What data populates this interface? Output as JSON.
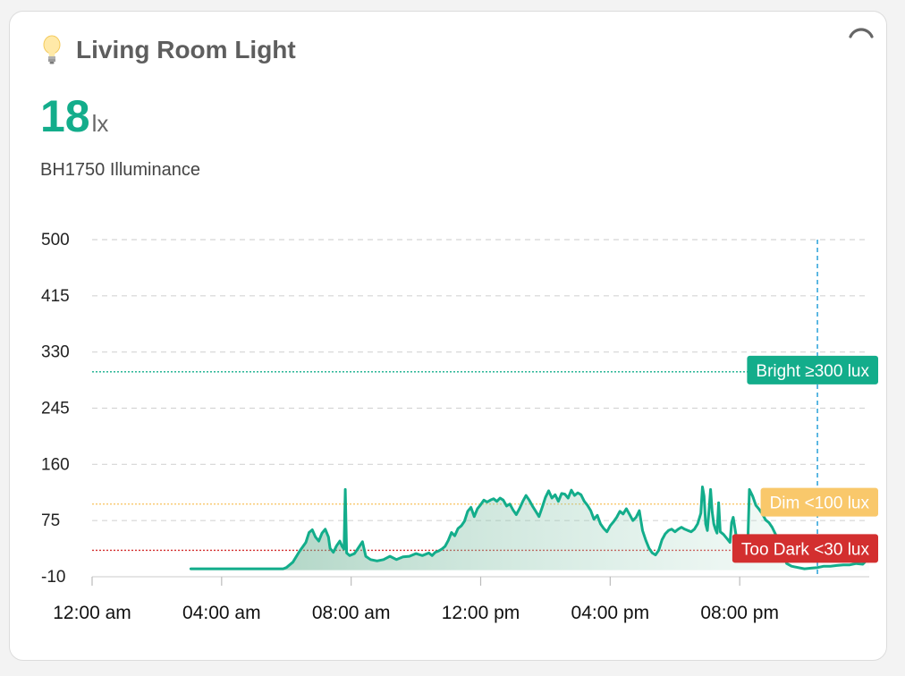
{
  "card": {
    "title": "Living Room Light",
    "icon": "lightbulb-icon",
    "value": "18",
    "unit": "lx",
    "subtitle": "BH1750 Illuminance",
    "accent_color": "#13ad8b"
  },
  "chart_data": {
    "type": "area",
    "title": "",
    "xlabel": "",
    "ylabel": "",
    "x_unit": "hour",
    "xlim": [
      0,
      24
    ],
    "ylim": [
      -10,
      500
    ],
    "y_ticks": [
      -10,
      75,
      160,
      245,
      330,
      415,
      500
    ],
    "x_ticks": [
      {
        "value": 0,
        "label": "12:00 am"
      },
      {
        "value": 4,
        "label": "04:00 am"
      },
      {
        "value": 8,
        "label": "08:00 am"
      },
      {
        "value": 12,
        "label": "12:00 pm"
      },
      {
        "value": 16,
        "label": "04:00 pm"
      },
      {
        "value": 20,
        "label": "08:00 pm"
      }
    ],
    "grid": true,
    "cursor_x": 22.4,
    "thresholds": [
      {
        "value": 300,
        "label": "Bright ≥300 lux",
        "color": "#13ad8b",
        "text_color": "#ffffff"
      },
      {
        "value": 100,
        "label": "Dim <100 lux",
        "color": "#f9c86b",
        "text_color": "#ffffff"
      },
      {
        "value": 30,
        "label": "Too Dark <30 lux",
        "color": "#d32f2f",
        "text_color": "#ffffff"
      }
    ],
    "series": [
      {
        "color": "#13ad8b",
        "points": [
          [
            3.05,
            2
          ],
          [
            5.9,
            2
          ],
          [
            6.0,
            4
          ],
          [
            6.2,
            12
          ],
          [
            6.4,
            28
          ],
          [
            6.6,
            42
          ],
          [
            6.7,
            57
          ],
          [
            6.8,
            61
          ],
          [
            6.9,
            50
          ],
          [
            7.0,
            44
          ],
          [
            7.1,
            56
          ],
          [
            7.2,
            62
          ],
          [
            7.3,
            50
          ],
          [
            7.35,
            33
          ],
          [
            7.45,
            27
          ],
          [
            7.55,
            37
          ],
          [
            7.65,
            44
          ],
          [
            7.72,
            36
          ],
          [
            7.78,
            32
          ],
          [
            7.82,
            122
          ],
          [
            7.86,
            26
          ],
          [
            7.95,
            22
          ],
          [
            8.1,
            25
          ],
          [
            8.2,
            32
          ],
          [
            8.35,
            43
          ],
          [
            8.45,
            21
          ],
          [
            8.6,
            16
          ],
          [
            8.8,
            14
          ],
          [
            9.0,
            16
          ],
          [
            9.2,
            21
          ],
          [
            9.4,
            16
          ],
          [
            9.6,
            20
          ],
          [
            9.8,
            21
          ],
          [
            10.0,
            25
          ],
          [
            10.2,
            22
          ],
          [
            10.4,
            26
          ],
          [
            10.5,
            22
          ],
          [
            10.6,
            27
          ],
          [
            10.7,
            29
          ],
          [
            10.8,
            32
          ],
          [
            10.9,
            36
          ],
          [
            11.0,
            45
          ],
          [
            11.1,
            57
          ],
          [
            11.2,
            52
          ],
          [
            11.3,
            63
          ],
          [
            11.4,
            67
          ],
          [
            11.5,
            74
          ],
          [
            11.6,
            89
          ],
          [
            11.7,
            95
          ],
          [
            11.8,
            81
          ],
          [
            11.9,
            93
          ],
          [
            12.0,
            99
          ],
          [
            12.1,
            106
          ],
          [
            12.2,
            103
          ],
          [
            12.3,
            106
          ],
          [
            12.4,
            108
          ],
          [
            12.5,
            104
          ],
          [
            12.6,
            109
          ],
          [
            12.7,
            106
          ],
          [
            12.8,
            97
          ],
          [
            12.9,
            100
          ],
          [
            13.0,
            91
          ],
          [
            13.1,
            84
          ],
          [
            13.2,
            93
          ],
          [
            13.3,
            104
          ],
          [
            13.4,
            113
          ],
          [
            13.5,
            106
          ],
          [
            13.6,
            97
          ],
          [
            13.7,
            89
          ],
          [
            13.8,
            81
          ],
          [
            13.9,
            95
          ],
          [
            14.0,
            110
          ],
          [
            14.1,
            120
          ],
          [
            14.2,
            109
          ],
          [
            14.3,
            114
          ],
          [
            14.4,
            104
          ],
          [
            14.5,
            116
          ],
          [
            14.6,
            115
          ],
          [
            14.7,
            109
          ],
          [
            14.8,
            121
          ],
          [
            14.9,
            113
          ],
          [
            15.0,
            117
          ],
          [
            15.1,
            114
          ],
          [
            15.2,
            104
          ],
          [
            15.3,
            98
          ],
          [
            15.4,
            90
          ],
          [
            15.5,
            77
          ],
          [
            15.6,
            83
          ],
          [
            15.7,
            70
          ],
          [
            15.8,
            63
          ],
          [
            15.9,
            58
          ],
          [
            16.0,
            67
          ],
          [
            16.1,
            73
          ],
          [
            16.2,
            80
          ],
          [
            16.3,
            89
          ],
          [
            16.4,
            85
          ],
          [
            16.5,
            93
          ],
          [
            16.6,
            84
          ],
          [
            16.7,
            75
          ],
          [
            16.8,
            80
          ],
          [
            16.9,
            90
          ],
          [
            17.0,
            60
          ],
          [
            17.1,
            45
          ],
          [
            17.2,
            33
          ],
          [
            17.3,
            26
          ],
          [
            17.4,
            23
          ],
          [
            17.5,
            30
          ],
          [
            17.6,
            46
          ],
          [
            17.7,
            55
          ],
          [
            17.8,
            60
          ],
          [
            17.9,
            62
          ],
          [
            18.0,
            58
          ],
          [
            18.1,
            62
          ],
          [
            18.2,
            65
          ],
          [
            18.3,
            62
          ],
          [
            18.4,
            60
          ],
          [
            18.5,
            58
          ],
          [
            18.6,
            62
          ],
          [
            18.7,
            70
          ],
          [
            18.8,
            86
          ],
          [
            18.85,
            126
          ],
          [
            18.9,
            112
          ],
          [
            18.95,
            70
          ],
          [
            19.0,
            60
          ],
          [
            19.05,
            90
          ],
          [
            19.1,
            122
          ],
          [
            19.15,
            88
          ],
          [
            19.2,
            70
          ],
          [
            19.25,
            62
          ],
          [
            19.3,
            56
          ],
          [
            19.35,
            102
          ],
          [
            19.4,
            58
          ],
          [
            19.5,
            54
          ],
          [
            19.6,
            48
          ],
          [
            19.7,
            42
          ],
          [
            19.75,
            72
          ],
          [
            19.8,
            80
          ],
          [
            19.9,
            49
          ],
          [
            20.0,
            33
          ],
          [
            20.05,
            40
          ],
          [
            20.1,
            36
          ],
          [
            20.15,
            33
          ],
          [
            20.25,
            40
          ],
          [
            20.3,
            122
          ],
          [
            20.4,
            112
          ],
          [
            20.5,
            98
          ],
          [
            20.6,
            92
          ],
          [
            20.7,
            85
          ],
          [
            20.8,
            76
          ],
          [
            20.9,
            72
          ],
          [
            21.0,
            65
          ],
          [
            21.1,
            55
          ],
          [
            21.2,
            45
          ],
          [
            21.3,
            38
          ],
          [
            21.35,
            24
          ],
          [
            21.45,
            10
          ],
          [
            21.6,
            6
          ],
          [
            21.8,
            4
          ],
          [
            22.0,
            2
          ],
          [
            22.2,
            3
          ],
          [
            22.4,
            4
          ],
          [
            22.6,
            6
          ],
          [
            22.8,
            6
          ],
          [
            23.0,
            7
          ],
          [
            23.2,
            8
          ],
          [
            23.4,
            8
          ],
          [
            23.6,
            10
          ],
          [
            23.8,
            9
          ],
          [
            23.9,
            14
          ],
          [
            24.0,
            15
          ]
        ]
      }
    ]
  }
}
